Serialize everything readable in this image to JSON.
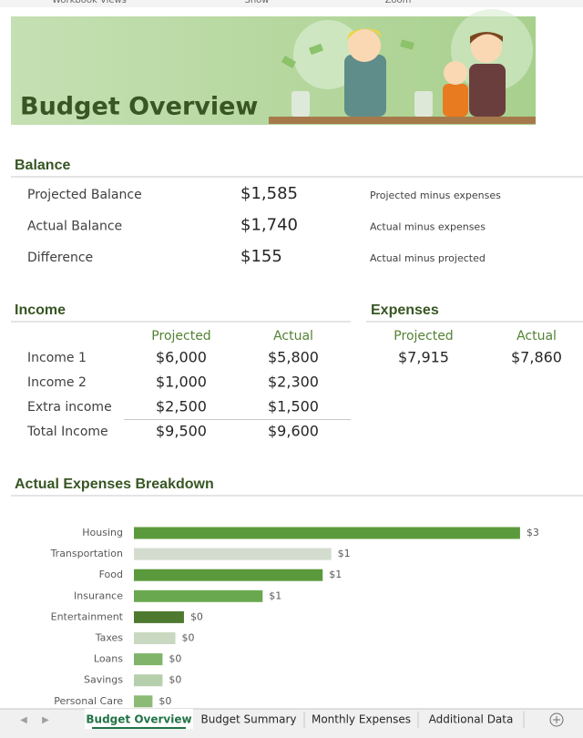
{
  "ribbon_groups": [
    "Workbook Views",
    "Show",
    "Zoom"
  ],
  "header": {
    "title": "Budget Overview"
  },
  "balance": {
    "heading": "Balance",
    "rows": [
      [
        "Projected Balance",
        "$1,585",
        "Projected minus expenses"
      ],
      [
        "Actual Balance",
        "$1,740",
        "Actual minus expenses"
      ],
      [
        "Difference",
        "$155",
        "Actual minus projected"
      ]
    ]
  },
  "income": {
    "heading": "Income",
    "columns": [
      "Projected",
      "Actual"
    ],
    "rows": [
      [
        "Income 1",
        "$6,000",
        "$5,800"
      ],
      [
        "Income 2",
        "$1,000",
        "$2,300"
      ],
      [
        "Extra income",
        "$2,500",
        "$1,500"
      ],
      [
        "Total Income",
        "$9,500",
        "$9,600"
      ]
    ]
  },
  "expenses": {
    "heading": "Expenses",
    "columns": [
      "Projected",
      "Actual"
    ],
    "values": [
      "$7,915",
      "$7,860"
    ]
  },
  "breakdown": {
    "heading": "Actual Expenses Breakdown",
    "chart": {
      "type": "bar",
      "categories": [
        "Housing",
        "Transportation",
        "Food",
        "Insurance",
        "Entertainment",
        "Taxes",
        "Loans",
        "Savings",
        "Personal Care"
      ],
      "values": [
        2.7,
        1.38,
        1.32,
        0.9,
        0.35,
        0.29,
        0.2,
        0.2,
        0.13
      ],
      "value_labels": [
        "$3",
        "$1",
        "$1",
        "$1",
        "$0",
        "$0",
        "$0",
        "$0",
        "$0"
      ],
      "colors": [
        "#5b9a3c",
        "#d3dccf",
        "#5b9a3c",
        "#6aa84f",
        "#4e7a30",
        "#c9d9c1",
        "#7fb46a",
        "#b6cfac",
        "#8cbb78"
      ],
      "xlim": [
        0,
        3
      ]
    }
  },
  "tabs": [
    "Budget Overview",
    "Budget Summary",
    "Monthly Expenses",
    "Additional Data"
  ],
  "active_tab": 0
}
